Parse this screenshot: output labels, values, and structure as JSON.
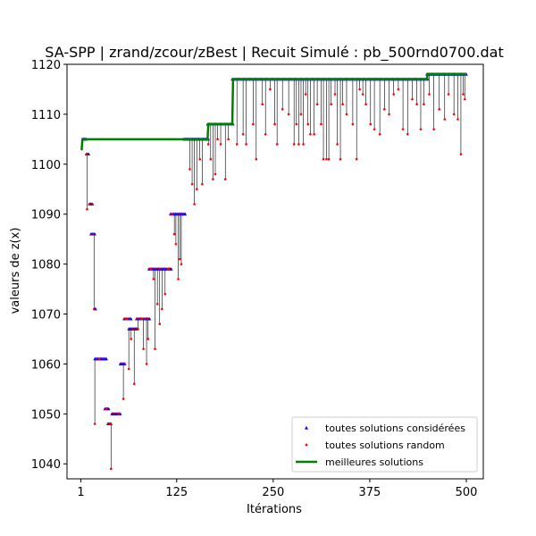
{
  "chart_data": {
    "type": "scatter",
    "title": "SA-SPP | zrand/zcour/zBest | Recuit Simulé : pb_500rnd0700.dat",
    "xlabel": "Itérations",
    "ylabel": "valeurs de z(x)",
    "xlim": [
      -17,
      522
    ],
    "ylim": [
      1037,
      1120
    ],
    "xticks": [
      1,
      125,
      250,
      375,
      500
    ],
    "xtick_labels": [
      "1",
      "125",
      "250",
      "375",
      "500"
    ],
    "yticks": [
      1040,
      1050,
      1060,
      1070,
      1080,
      1090,
      1100,
      1110,
      1120
    ],
    "ytick_labels": [
      "1040",
      "1050",
      "1060",
      "1070",
      "1080",
      "1090",
      "1100",
      "1110",
      "1120"
    ],
    "grid": false,
    "legend_position": "lower-right",
    "legend": [
      {
        "label": "toutes solutions considérées",
        "marker": "triangle",
        "color": "#0000ff"
      },
      {
        "label": "toutes solutions random",
        "marker": "dot",
        "color": "#ff0000"
      },
      {
        "label": "meilleures solutions",
        "marker": "line",
        "color": "#008000"
      }
    ],
    "series": [
      {
        "name": "meilleures solutions",
        "kind": "step-line",
        "color": "#008000",
        "points": [
          [
            1,
            1103
          ],
          [
            2,
            1103
          ],
          [
            3,
            1105
          ],
          [
            134,
            1105
          ],
          [
            135,
            1105
          ],
          [
            165,
            1105
          ],
          [
            166,
            1108
          ],
          [
            197,
            1108
          ],
          [
            198,
            1117
          ],
          [
            449,
            1117
          ],
          [
            450,
            1118
          ],
          [
            500,
            1118
          ]
        ]
      },
      {
        "name": "toutes solutions considérées",
        "kind": "plateaus",
        "color": "#0000ff",
        "segments": [
          {
            "x": [
              3,
              8
            ],
            "y": 1105
          },
          {
            "x": [
              8,
              11
            ],
            "y": 1102
          },
          {
            "x": [
              12,
              16
            ],
            "y": 1092
          },
          {
            "x": [
              14,
              19
            ],
            "y": 1086
          },
          {
            "x": [
              19,
              20
            ],
            "y": 1071
          },
          {
            "x": [
              19,
              34
            ],
            "y": 1061
          },
          {
            "x": [
              32,
              37
            ],
            "y": 1051
          },
          {
            "x": [
              36,
              40
            ],
            "y": 1048
          },
          {
            "x": [
              41,
              52
            ],
            "y": 1050
          },
          {
            "x": [
              52,
              58
            ],
            "y": 1060
          },
          {
            "x": [
              57,
              66
            ],
            "y": 1069
          },
          {
            "x": [
              63,
              74
            ],
            "y": 1067
          },
          {
            "x": [
              73,
              90
            ],
            "y": 1069
          },
          {
            "x": [
              89,
              118
            ],
            "y": 1079
          },
          {
            "x": [
              117,
              136
            ],
            "y": 1090
          },
          {
            "x": [
              134,
              166
            ],
            "y": 1105
          },
          {
            "x": [
              165,
              198
            ],
            "y": 1108
          },
          {
            "x": [
              197,
              450
            ],
            "y": 1117
          },
          {
            "x": [
              449,
              500
            ],
            "y": 1118
          }
        ]
      },
      {
        "name": "toutes solutions random",
        "kind": "scatter",
        "color": "#ff0000",
        "points": [
          [
            2,
            1103
          ],
          [
            8,
            1102
          ],
          [
            9,
            1091
          ],
          [
            12,
            1092
          ],
          [
            18,
            1071
          ],
          [
            19,
            1048
          ],
          [
            25,
            1061
          ],
          [
            34,
            1051
          ],
          [
            38,
            1048
          ],
          [
            40,
            1039
          ],
          [
            50,
            1050
          ],
          [
            56,
            1053
          ],
          [
            60,
            1069
          ],
          [
            63,
            1059
          ],
          [
            66,
            1065
          ],
          [
            70,
            1056
          ],
          [
            75,
            1067
          ],
          [
            80,
            1069
          ],
          [
            82,
            1063
          ],
          [
            86,
            1060
          ],
          [
            88,
            1065
          ],
          [
            92,
            1079
          ],
          [
            95,
            1077
          ],
          [
            97,
            1063
          ],
          [
            100,
            1072
          ],
          [
            103,
            1068
          ],
          [
            106,
            1071
          ],
          [
            110,
            1074
          ],
          [
            114,
            1079
          ],
          [
            119,
            1090
          ],
          [
            122,
            1086
          ],
          [
            124,
            1084
          ],
          [
            127,
            1077
          ],
          [
            129,
            1081
          ],
          [
            131,
            1080
          ],
          [
            142,
            1099
          ],
          [
            145,
            1096
          ],
          [
            148,
            1092
          ],
          [
            151,
            1095
          ],
          [
            155,
            1101
          ],
          [
            158,
            1096
          ],
          [
            166,
            1104
          ],
          [
            169,
            1101
          ],
          [
            172,
            1097
          ],
          [
            175,
            1098
          ],
          [
            178,
            1105
          ],
          [
            182,
            1104
          ],
          [
            188,
            1097
          ],
          [
            192,
            1105
          ],
          [
            203,
            1104
          ],
          [
            211,
            1106
          ],
          [
            215,
            1104
          ],
          [
            224,
            1108
          ],
          [
            228,
            1101
          ],
          [
            236,
            1112
          ],
          [
            240,
            1106
          ],
          [
            246,
            1115
          ],
          [
            252,
            1108
          ],
          [
            255,
            1104
          ],
          [
            262,
            1111
          ],
          [
            270,
            1110
          ],
          [
            277,
            1104
          ],
          [
            280,
            1108
          ],
          [
            283,
            1104
          ],
          [
            286,
            1110
          ],
          [
            289,
            1104
          ],
          [
            292,
            1114
          ],
          [
            295,
            1108
          ],
          [
            298,
            1106
          ],
          [
            303,
            1106
          ],
          [
            307,
            1112
          ],
          [
            312,
            1108
          ],
          [
            315,
            1101
          ],
          [
            319,
            1101
          ],
          [
            322,
            1101
          ],
          [
            325,
            1112
          ],
          [
            330,
            1114
          ],
          [
            333,
            1104
          ],
          [
            337,
            1101
          ],
          [
            340,
            1112
          ],
          [
            345,
            1110
          ],
          [
            353,
            1108
          ],
          [
            358,
            1101
          ],
          [
            362,
            1115
          ],
          [
            366,
            1114
          ],
          [
            370,
            1112
          ],
          [
            376,
            1108
          ],
          [
            381,
            1107
          ],
          [
            388,
            1106
          ],
          [
            394,
            1111
          ],
          [
            400,
            1110
          ],
          [
            406,
            1114
          ],
          [
            412,
            1115
          ],
          [
            418,
            1107
          ],
          [
            424,
            1106
          ],
          [
            430,
            1113
          ],
          [
            436,
            1112
          ],
          [
            441,
            1107
          ],
          [
            445,
            1112
          ],
          [
            452,
            1114
          ],
          [
            458,
            1107
          ],
          [
            465,
            1111
          ],
          [
            472,
            1109
          ],
          [
            477,
            1114
          ],
          [
            484,
            1110
          ],
          [
            489,
            1109
          ],
          [
            493,
            1102
          ],
          [
            496,
            1114
          ],
          [
            498,
            1113
          ]
        ]
      }
    ]
  }
}
